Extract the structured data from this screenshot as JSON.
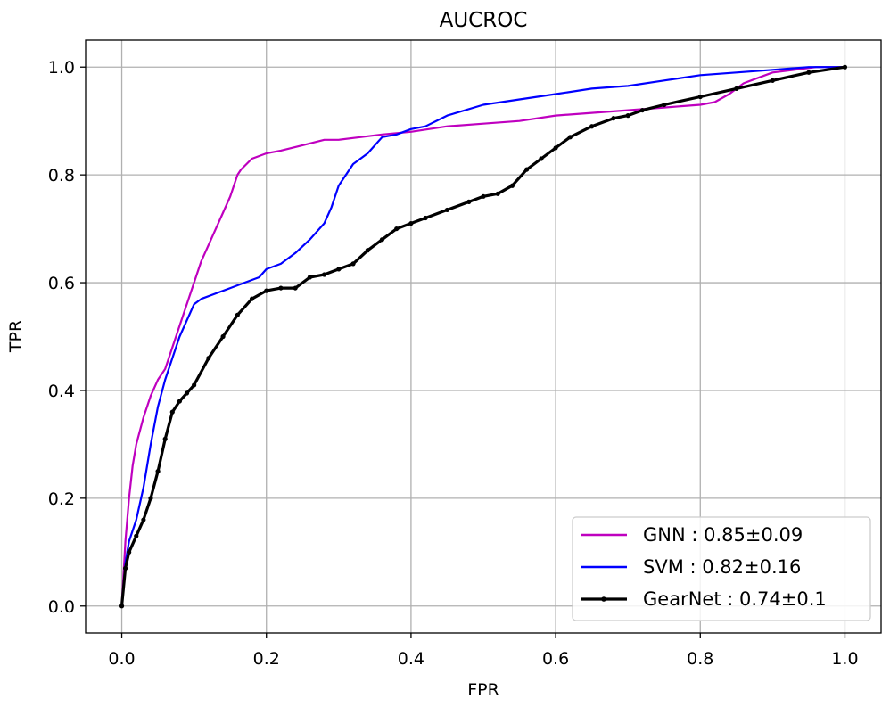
{
  "chart_data": {
    "type": "line",
    "title": "AUCROC",
    "xlabel": "FPR",
    "ylabel": "TPR",
    "xlim": [
      -0.05,
      1.05
    ],
    "ylim": [
      -0.05,
      1.05
    ],
    "xticks": [
      "0.0",
      "0.2",
      "0.4",
      "0.6",
      "0.8",
      "1.0"
    ],
    "yticks": [
      "0.0",
      "0.2",
      "0.4",
      "0.6",
      "0.8",
      "1.0"
    ],
    "grid": true,
    "legend_position": "lower-right",
    "series": [
      {
        "name": "GNN : 0.85±0.09",
        "color": "#bf00bf",
        "marker": false,
        "x": [
          0.0,
          0.005,
          0.01,
          0.015,
          0.02,
          0.03,
          0.04,
          0.05,
          0.06,
          0.07,
          0.08,
          0.09,
          0.1,
          0.11,
          0.12,
          0.13,
          0.14,
          0.15,
          0.16,
          0.165,
          0.18,
          0.2,
          0.22,
          0.25,
          0.28,
          0.3,
          0.33,
          0.36,
          0.4,
          0.45,
          0.5,
          0.55,
          0.6,
          0.65,
          0.7,
          0.75,
          0.8,
          0.82,
          0.84,
          0.86,
          0.88,
          0.9,
          0.93,
          0.96,
          1.0
        ],
        "y": [
          0.0,
          0.12,
          0.2,
          0.26,
          0.3,
          0.35,
          0.39,
          0.42,
          0.44,
          0.48,
          0.52,
          0.56,
          0.6,
          0.64,
          0.67,
          0.7,
          0.73,
          0.76,
          0.8,
          0.81,
          0.83,
          0.84,
          0.845,
          0.855,
          0.865,
          0.865,
          0.87,
          0.875,
          0.88,
          0.89,
          0.895,
          0.9,
          0.91,
          0.915,
          0.92,
          0.925,
          0.93,
          0.935,
          0.95,
          0.97,
          0.98,
          0.99,
          0.995,
          1.0,
          1.0
        ]
      },
      {
        "name": "SVM : 0.82±0.16",
        "color": "#0000ff",
        "marker": false,
        "x": [
          0.0,
          0.005,
          0.01,
          0.02,
          0.03,
          0.04,
          0.05,
          0.06,
          0.07,
          0.08,
          0.09,
          0.1,
          0.11,
          0.13,
          0.15,
          0.17,
          0.19,
          0.2,
          0.22,
          0.24,
          0.26,
          0.28,
          0.29,
          0.3,
          0.31,
          0.32,
          0.34,
          0.36,
          0.38,
          0.4,
          0.42,
          0.45,
          0.5,
          0.55,
          0.6,
          0.65,
          0.7,
          0.75,
          0.8,
          0.85,
          0.9,
          0.95,
          1.0
        ],
        "y": [
          0.0,
          0.08,
          0.12,
          0.16,
          0.22,
          0.3,
          0.37,
          0.42,
          0.46,
          0.5,
          0.53,
          0.56,
          0.57,
          0.58,
          0.59,
          0.6,
          0.61,
          0.625,
          0.635,
          0.655,
          0.68,
          0.71,
          0.74,
          0.78,
          0.8,
          0.82,
          0.84,
          0.87,
          0.875,
          0.885,
          0.89,
          0.91,
          0.93,
          0.94,
          0.95,
          0.96,
          0.965,
          0.975,
          0.985,
          0.99,
          0.995,
          1.0,
          1.0
        ]
      },
      {
        "name": "GearNet : 0.74±0.1",
        "color": "#000000",
        "marker": true,
        "x": [
          0.0,
          0.005,
          0.01,
          0.02,
          0.03,
          0.04,
          0.05,
          0.06,
          0.07,
          0.08,
          0.09,
          0.1,
          0.12,
          0.14,
          0.16,
          0.18,
          0.2,
          0.22,
          0.24,
          0.26,
          0.28,
          0.3,
          0.32,
          0.34,
          0.36,
          0.38,
          0.4,
          0.42,
          0.45,
          0.48,
          0.5,
          0.52,
          0.54,
          0.56,
          0.58,
          0.6,
          0.62,
          0.65,
          0.68,
          0.7,
          0.72,
          0.75,
          0.8,
          0.85,
          0.9,
          0.95,
          1.0
        ],
        "y": [
          0.0,
          0.07,
          0.1,
          0.13,
          0.16,
          0.2,
          0.25,
          0.31,
          0.36,
          0.38,
          0.395,
          0.41,
          0.46,
          0.5,
          0.54,
          0.57,
          0.585,
          0.59,
          0.59,
          0.61,
          0.615,
          0.625,
          0.635,
          0.66,
          0.68,
          0.7,
          0.71,
          0.72,
          0.735,
          0.75,
          0.76,
          0.765,
          0.78,
          0.81,
          0.83,
          0.85,
          0.87,
          0.89,
          0.905,
          0.91,
          0.92,
          0.93,
          0.945,
          0.96,
          0.975,
          0.99,
          1.0
        ]
      }
    ]
  }
}
